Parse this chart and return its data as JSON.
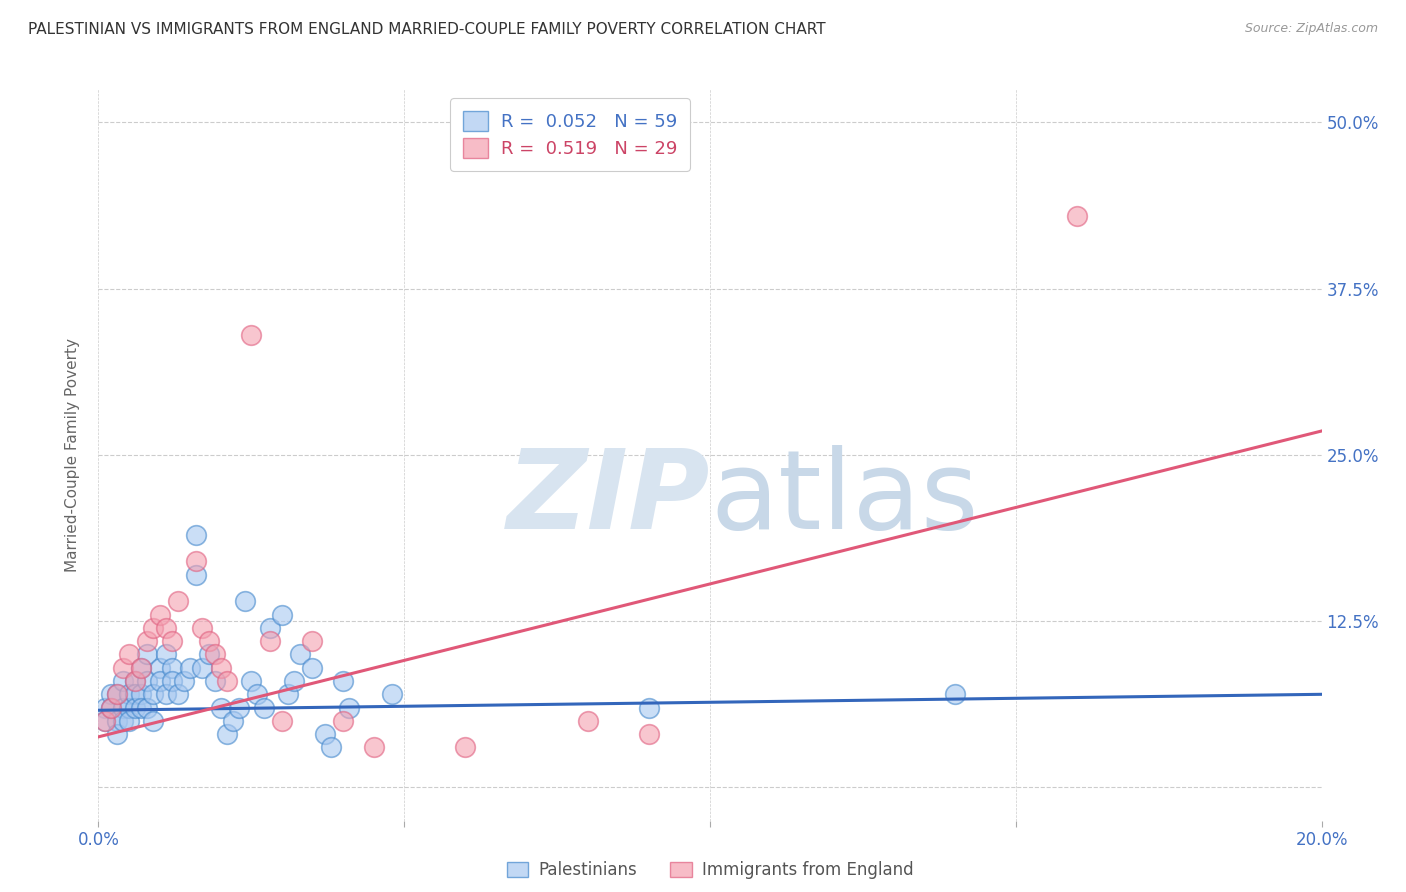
{
  "title": "PALESTINIAN VS IMMIGRANTS FROM ENGLAND MARRIED-COUPLE FAMILY POVERTY CORRELATION CHART",
  "source": "Source: ZipAtlas.com",
  "ylabel": "Married-Couple Family Poverty",
  "xlim": [
    0.0,
    0.2
  ],
  "ylim": [
    -0.025,
    0.525
  ],
  "yticks": [
    0.0,
    0.125,
    0.25,
    0.375,
    0.5
  ],
  "ytick_labels": [
    "",
    "12.5%",
    "25.0%",
    "37.5%",
    "50.0%"
  ],
  "xticks": [
    0.0,
    0.05,
    0.1,
    0.15,
    0.2
  ],
  "xtick_labels": [
    "0.0%",
    "",
    "",
    "",
    "20.0%"
  ],
  "legend1_r": "0.052",
  "legend1_n": "59",
  "legend2_r": "0.519",
  "legend2_n": "29",
  "blue_fill": "#A8C8F0",
  "blue_edge": "#4488CC",
  "pink_fill": "#F4A0B0",
  "pink_edge": "#E06080",
  "blue_line": "#3366BB",
  "pink_line": "#E05878",
  "bg_color": "#FFFFFF",
  "watermark_color": "#D8E4F0",
  "grid_color": "#CCCCCC",
  "title_color": "#333333",
  "ylabel_color": "#666666",
  "tick_blue": "#4472C4",
  "tick_pink": "#CC4466",
  "blue_points_x": [
    0.001,
    0.001,
    0.002,
    0.002,
    0.003,
    0.003,
    0.003,
    0.004,
    0.004,
    0.004,
    0.005,
    0.005,
    0.005,
    0.006,
    0.006,
    0.006,
    0.007,
    0.007,
    0.007,
    0.008,
    0.008,
    0.008,
    0.009,
    0.009,
    0.01,
    0.01,
    0.011,
    0.011,
    0.012,
    0.012,
    0.013,
    0.014,
    0.015,
    0.016,
    0.016,
    0.017,
    0.018,
    0.019,
    0.02,
    0.021,
    0.022,
    0.023,
    0.024,
    0.025,
    0.026,
    0.027,
    0.028,
    0.03,
    0.031,
    0.032,
    0.033,
    0.035,
    0.037,
    0.038,
    0.04,
    0.041,
    0.048,
    0.09,
    0.14
  ],
  "blue_points_y": [
    0.06,
    0.05,
    0.07,
    0.06,
    0.05,
    0.07,
    0.04,
    0.08,
    0.06,
    0.05,
    0.07,
    0.06,
    0.05,
    0.08,
    0.07,
    0.06,
    0.09,
    0.07,
    0.06,
    0.1,
    0.08,
    0.06,
    0.07,
    0.05,
    0.09,
    0.08,
    0.1,
    0.07,
    0.09,
    0.08,
    0.07,
    0.08,
    0.09,
    0.19,
    0.16,
    0.09,
    0.1,
    0.08,
    0.06,
    0.04,
    0.05,
    0.06,
    0.14,
    0.08,
    0.07,
    0.06,
    0.12,
    0.13,
    0.07,
    0.08,
    0.1,
    0.09,
    0.04,
    0.03,
    0.08,
    0.06,
    0.07,
    0.06,
    0.07
  ],
  "pink_points_x": [
    0.001,
    0.002,
    0.003,
    0.004,
    0.005,
    0.006,
    0.007,
    0.008,
    0.009,
    0.01,
    0.011,
    0.012,
    0.013,
    0.016,
    0.017,
    0.018,
    0.019,
    0.02,
    0.021,
    0.025,
    0.028,
    0.03,
    0.035,
    0.04,
    0.045,
    0.06,
    0.08,
    0.09,
    0.16
  ],
  "pink_points_y": [
    0.05,
    0.06,
    0.07,
    0.09,
    0.1,
    0.08,
    0.09,
    0.11,
    0.12,
    0.13,
    0.12,
    0.11,
    0.14,
    0.17,
    0.12,
    0.11,
    0.1,
    0.09,
    0.08,
    0.34,
    0.11,
    0.05,
    0.11,
    0.05,
    0.03,
    0.03,
    0.05,
    0.04,
    0.43
  ],
  "blue_trend_x": [
    0.0,
    0.2
  ],
  "blue_trend_y": [
    0.058,
    0.07
  ],
  "pink_trend_x": [
    0.0,
    0.2
  ],
  "pink_trend_y": [
    0.038,
    0.268
  ]
}
